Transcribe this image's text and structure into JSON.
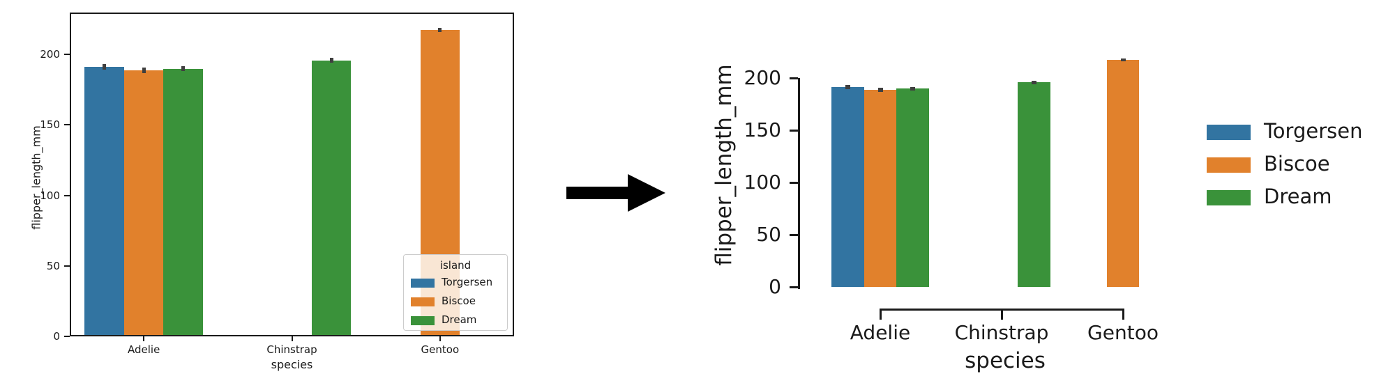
{
  "figure": {
    "background": "#ffffff",
    "description_arrow": "black right-pointing transformation arrow between the two plots"
  },
  "palette": {
    "Torgersen": "#3274a1",
    "Biscoe": "#e1812c",
    "Dream": "#3a923a"
  },
  "error_bar_color": "#3f3f3f",
  "text_color": "#1a1a1a",
  "spine_color": "#1a1a1a",
  "chart_data": [
    {
      "id": "before",
      "type": "bar",
      "title": "",
      "xlabel": "species",
      "ylabel": "flipper_length_mm",
      "categories": [
        "Adelie",
        "Chinstrap",
        "Gentoo"
      ],
      "series": [
        {
          "name": "Torgersen",
          "color": "#3274a1",
          "values": [
            191.2,
            null,
            null
          ],
          "ci_low": [
            189.3,
            null,
            null
          ],
          "ci_high": [
            193.2,
            null,
            null
          ]
        },
        {
          "name": "Biscoe",
          "color": "#e1812c",
          "values": [
            188.8,
            null,
            217.2
          ],
          "ci_low": [
            186.9,
            null,
            215.8
          ],
          "ci_high": [
            190.7,
            null,
            218.6
          ]
        },
        {
          "name": "Dream",
          "color": "#3a923a",
          "values": [
            189.7,
            195.8,
            null
          ],
          "ci_low": [
            187.9,
            194.1,
            null
          ],
          "ci_high": [
            191.5,
            197.5,
            null
          ]
        }
      ],
      "yticks": [
        0,
        50,
        100,
        150,
        200
      ],
      "ylim": [
        0,
        229
      ],
      "grid": false,
      "legend": {
        "title": "island",
        "labels": [
          "Torgersen",
          "Biscoe",
          "Dream"
        ],
        "position": "inside lower right"
      }
    },
    {
      "id": "after",
      "type": "bar",
      "title": "",
      "xlabel": "species",
      "ylabel": "flipper_length_mm",
      "categories": [
        "Adelie",
        "Chinstrap",
        "Gentoo"
      ],
      "series": [
        {
          "name": "Torgersen",
          "color": "#3274a1",
          "values": [
            191.2,
            null,
            null
          ],
          "ci_low": [
            189.3,
            null,
            null
          ],
          "ci_high": [
            193.2,
            null,
            null
          ]
        },
        {
          "name": "Biscoe",
          "color": "#e1812c",
          "values": [
            188.8,
            null,
            217.2
          ],
          "ci_low": [
            186.9,
            null,
            215.8
          ],
          "ci_high": [
            190.7,
            null,
            218.6
          ]
        },
        {
          "name": "Dream",
          "color": "#3a923a",
          "values": [
            189.7,
            195.8,
            null
          ],
          "ci_low": [
            187.9,
            194.1,
            null
          ],
          "ci_high": [
            191.5,
            197.5,
            null
          ]
        }
      ],
      "yticks": [
        0,
        50,
        100,
        150,
        200
      ],
      "ylim": [
        0,
        228
      ],
      "grid": false,
      "legend": {
        "title": "",
        "labels": [
          "Torgersen",
          "Biscoe",
          "Dream"
        ],
        "position": "outside right"
      }
    }
  ]
}
